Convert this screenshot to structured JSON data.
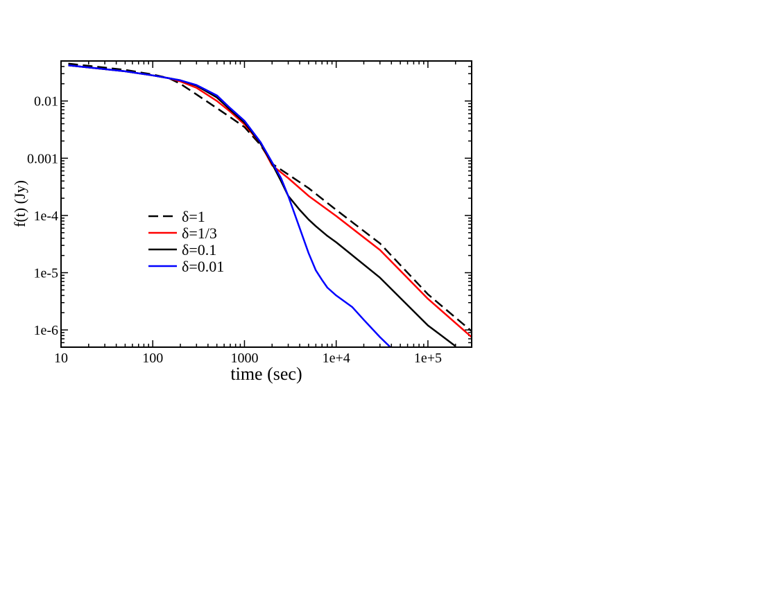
{
  "chart_data": {
    "type": "line",
    "title": "",
    "xlabel": "time (sec)",
    "ylabel": "f(t) (Jy)",
    "xscale": "log",
    "yscale": "log",
    "xlim": [
      10,
      300000
    ],
    "ylim": [
      5e-07,
      0.05
    ],
    "grid": false,
    "legend_position": "center-left",
    "x_ticks": [
      {
        "value": 10,
        "label": "10"
      },
      {
        "value": 100,
        "label": "100"
      },
      {
        "value": 1000,
        "label": "1000"
      },
      {
        "value": 10000,
        "label": "1e+4"
      },
      {
        "value": 100000,
        "label": "1e+5"
      }
    ],
    "y_ticks": [
      {
        "value": 0.01,
        "label": "0.01"
      },
      {
        "value": 0.001,
        "label": "0.001"
      },
      {
        "value": 0.0001,
        "label": "1e-4"
      },
      {
        "value": 1e-05,
        "label": "1e-5"
      },
      {
        "value": 1e-06,
        "label": "1e-6"
      }
    ],
    "series": [
      {
        "name": "δ=1",
        "color": "#000000",
        "dash": true,
        "x": [
          12,
          50,
          100,
          150,
          200,
          300,
          500,
          700,
          1000,
          1500,
          2000,
          3000,
          5000,
          10000,
          30000,
          100000,
          300000
        ],
        "y": [
          0.045,
          0.035,
          0.029,
          0.025,
          0.02,
          0.013,
          0.0075,
          0.0052,
          0.0035,
          0.0017,
          0.0008,
          0.00052,
          0.0003,
          0.000125,
          3.25e-05,
          4.2e-06,
          9.5e-07
        ]
      },
      {
        "name": "δ=1/3",
        "color": "#ff0000",
        "dash": false,
        "x": [
          12,
          50,
          100,
          150,
          200,
          300,
          500,
          700,
          1000,
          1500,
          2000,
          3000,
          5000,
          10000,
          30000,
          100000,
          300000
        ],
        "y": [
          0.042,
          0.033,
          0.028,
          0.025,
          0.022,
          0.017,
          0.01,
          0.0065,
          0.0039,
          0.0018,
          0.00075,
          0.00045,
          0.00022,
          9.75e-05,
          2.5e-05,
          3.5e-06,
          7.5e-07
        ]
      },
      {
        "name": "δ=0.1",
        "color": "#000000",
        "dash": false,
        "x": [
          12,
          50,
          100,
          150,
          200,
          300,
          500,
          700,
          1000,
          1500,
          2000,
          2500,
          3000,
          4000,
          5000,
          6000,
          8000,
          10000,
          30000,
          100000,
          200000
        ],
        "y": [
          0.042,
          0.033,
          0.028,
          0.025,
          0.023,
          0.0185,
          0.0115,
          0.007,
          0.0042,
          0.0018,
          0.0008,
          0.0004,
          0.00022,
          0.000125,
          8.5e-05,
          6.5e-05,
          4.4e-05,
          3.4e-05,
          8.2e-06,
          1.2e-06,
          5.2e-07
        ]
      },
      {
        "name": "δ=0.01",
        "color": "#0000ff",
        "dash": false,
        "x": [
          12,
          50,
          100,
          150,
          200,
          300,
          500,
          700,
          1000,
          1500,
          2000,
          2500,
          3000,
          4000,
          5000,
          6000,
          7000,
          8000,
          10000,
          15000,
          20000,
          30000,
          40000
        ],
        "y": [
          0.042,
          0.033,
          0.028,
          0.025,
          0.023,
          0.019,
          0.0125,
          0.0075,
          0.0045,
          0.0019,
          0.00085,
          0.00045,
          0.00022,
          6e-05,
          2.2e-05,
          1.1e-05,
          7.5e-06,
          5.5e-06,
          4e-06,
          2.5e-06,
          1.5e-06,
          7.5e-07,
          4.8e-07
        ]
      }
    ]
  }
}
